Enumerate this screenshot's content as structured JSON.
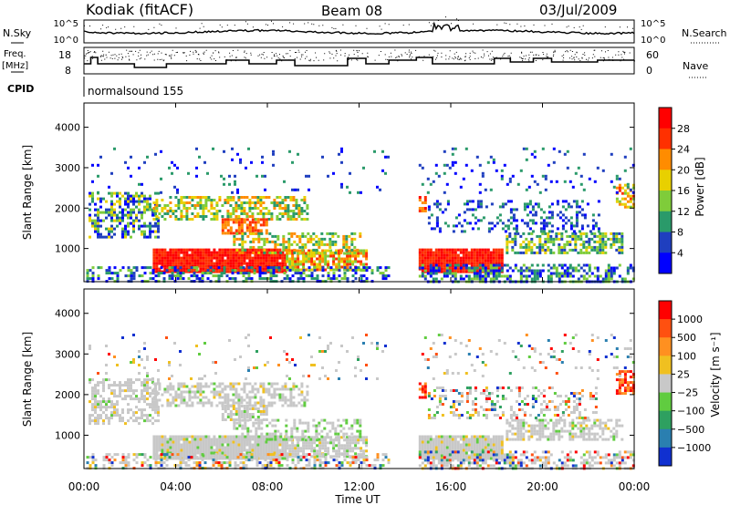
{
  "header": {
    "station": "Kodiak (fitACF)",
    "beam": "Beam 08",
    "date": "03/Jul/2009"
  },
  "side_labels": {
    "nsky": "N.Sky",
    "nsearch": "N.Search",
    "freq": "Freq.",
    "freq_unit": "[MHz]",
    "nave": "Nave",
    "cpid": "CPID",
    "cpid_value": "normalsound 155"
  },
  "colors": {
    "line": "#000000",
    "lost_data": "#ffffff"
  },
  "chart_data": [
    {
      "type": "line",
      "name": "noise",
      "y_ticks_left": [
        "10^5",
        "10^0"
      ],
      "y_ticks_right": [
        "10^5",
        "10^0"
      ],
      "series_labels": [
        "N.Sky",
        "N.Search"
      ]
    },
    {
      "type": "line",
      "name": "frequency-nave",
      "y_ticks_left": [
        "18",
        "8"
      ],
      "y_ticks_right": [
        "60",
        "0"
      ],
      "ylim_left": [
        8,
        18
      ],
      "ylim_right": [
        0,
        60
      ],
      "series_labels": [
        "Freq. [MHz]",
        "Nave"
      ]
    },
    {
      "type": "heatmap",
      "name": "power",
      "ylabel": "Slant Range [km]",
      "ylim": [
        180,
        4600
      ],
      "y_ticks": [
        1000,
        2000,
        3000,
        4000
      ],
      "xlim": [
        0,
        24
      ],
      "colorbar": {
        "label": "Power [dB]",
        "ticks": [
          "4",
          "8",
          "12",
          "16",
          "20",
          "24",
          "28"
        ],
        "colors": [
          "#0000ff",
          "#1f3fbf",
          "#2a9a6a",
          "#7fcc3a",
          "#e8d000",
          "#ff8c00",
          "#ff3000",
          "#ff0000"
        ]
      }
    },
    {
      "type": "heatmap",
      "name": "velocity",
      "ylabel": "Slant Range [km]",
      "ylim": [
        180,
        4600
      ],
      "y_ticks": [
        1000,
        2000,
        3000,
        4000
      ],
      "xlim": [
        0,
        24
      ],
      "x_ticks": [
        "00:00",
        "04:00",
        "08:00",
        "12:00",
        "16:00",
        "20:00",
        "00:00"
      ],
      "xlabel": "Time UT",
      "ground_scatter_color": "#c8c8c8",
      "colorbar": {
        "label": "Velocity [m s⁻¹]",
        "ticks": [
          "1000",
          "500",
          "100",
          "25",
          "−25",
          "−100",
          "−500",
          "−1000"
        ],
        "colors": [
          "#1030d0",
          "#2a7fb0",
          "#2ea060",
          "#60cc40",
          "#c8c8c8",
          "#f0c020",
          "#ff9020",
          "#ff5010",
          "#ff0000"
        ]
      }
    }
  ]
}
